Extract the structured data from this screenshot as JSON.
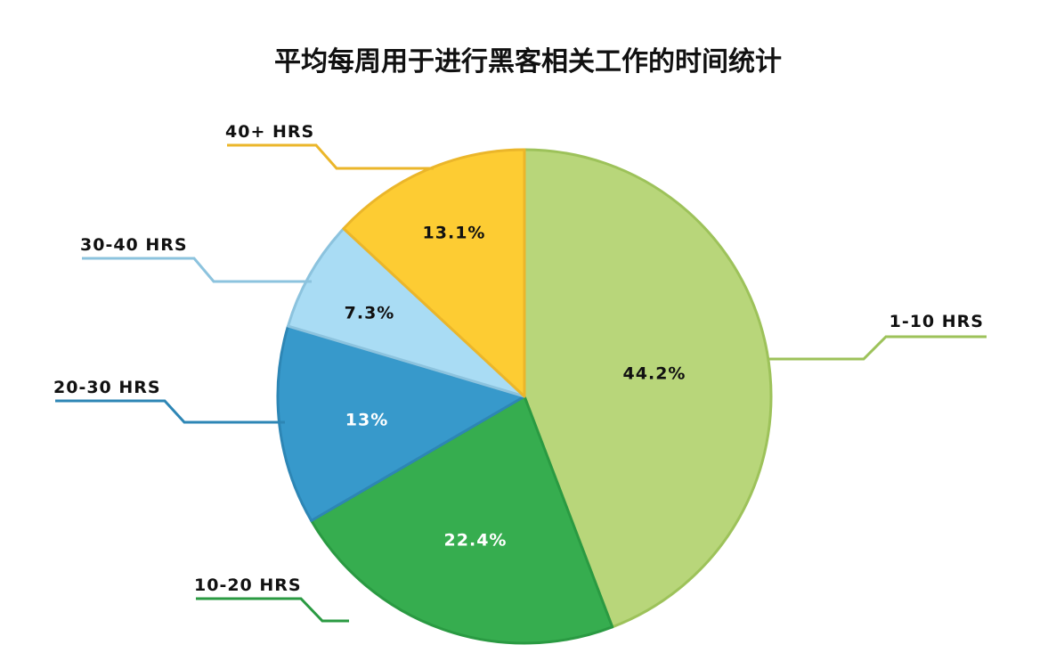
{
  "chart_data": {
    "type": "pie",
    "title": "平均每周用于进行黑客相关工作的时间统计",
    "slices": [
      {
        "label": "1-10 HRS",
        "value": 44.2,
        "display": "44.2%",
        "color": "#b8d67a",
        "border": "#9dc25a",
        "text_color": "#111111"
      },
      {
        "label": "10-20 HRS",
        "value": 22.4,
        "display": "22.4%",
        "color": "#36ad4f",
        "border": "#2a9a42",
        "text_color": "#ffffff"
      },
      {
        "label": "20-30 HRS",
        "value": 13,
        "display": "13%",
        "color": "#3799cb",
        "border": "#2d86b5",
        "text_color": "#ffffff"
      },
      {
        "label": "30-40 HRS",
        "value": 7.3,
        "display": "7.3%",
        "color": "#a9dcf4",
        "border": "#8cc3de",
        "text_color": "#111111"
      },
      {
        "label": "40+ HRS",
        "value": 13.1,
        "display": "13.1%",
        "color": "#fdcc33",
        "border": "#ebb62a",
        "text_color": "#111111"
      }
    ]
  }
}
